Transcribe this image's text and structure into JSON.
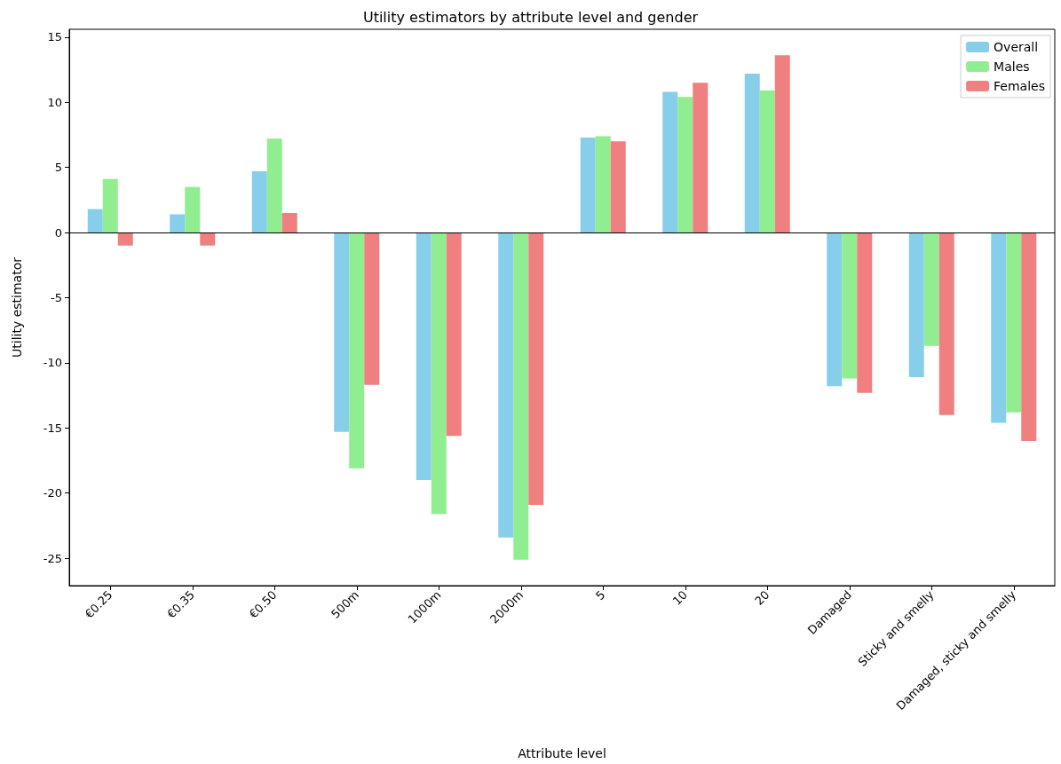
{
  "chart_data": {
    "type": "bar",
    "title": "Utility estimators by attribute level and gender",
    "xlabel": "Attribute level",
    "ylabel": "Utility estimator",
    "categories": [
      "€0.25",
      "€0.35",
      "€0.50",
      "500m",
      "1000m",
      "2000m",
      "5",
      "10",
      "20",
      "Damaged",
      "Sticky and smelly",
      "Damaged, sticky and smelly"
    ],
    "series": [
      {
        "name": "Overall",
        "color": "#87ceeb",
        "values": [
          1.8,
          1.4,
          4.7,
          -15.3,
          -19.0,
          -23.4,
          7.3,
          10.8,
          12.2,
          -11.8,
          -11.1,
          -14.6
        ]
      },
      {
        "name": "Males",
        "color": "#90ee90",
        "values": [
          4.1,
          3.5,
          7.2,
          -18.1,
          -21.6,
          -25.1,
          7.4,
          10.4,
          10.9,
          -11.2,
          -8.7,
          -13.8
        ]
      },
      {
        "name": "Females",
        "color": "#f08080",
        "values": [
          -1.0,
          -1.0,
          1.5,
          -11.7,
          -15.6,
          -20.9,
          7.0,
          11.5,
          13.6,
          -12.3,
          -14.0,
          -16.0
        ]
      }
    ],
    "ylim": [
      -27.1,
      15.6
    ],
    "yticks": [
      -25,
      -20,
      -15,
      -10,
      -5,
      0,
      5,
      10,
      15
    ],
    "grid": false,
    "legend": "top right",
    "ref_lines": [
      {
        "axis": "y",
        "value": 0,
        "color": "#000000"
      }
    ]
  }
}
